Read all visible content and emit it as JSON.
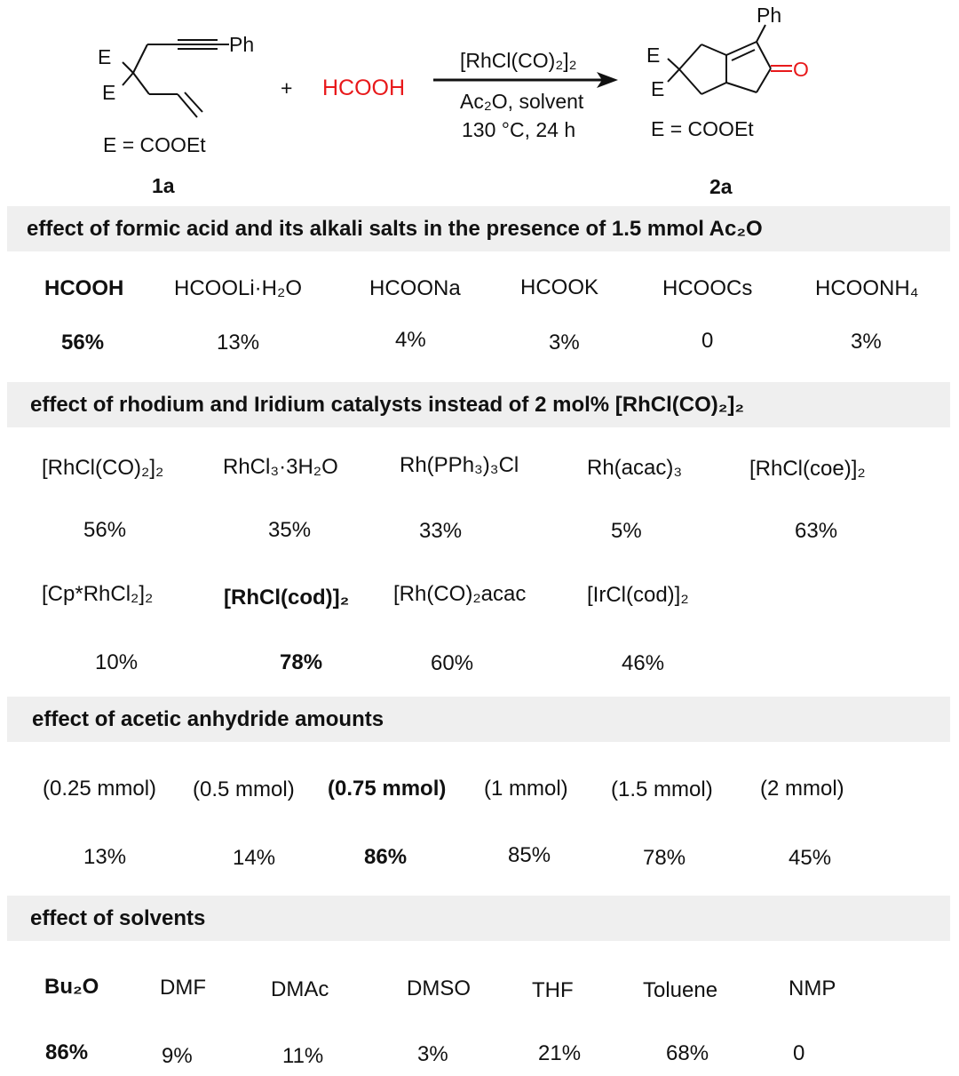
{
  "scheme": {
    "reactant": {
      "E_top": "E",
      "E_bottom": "E",
      "substituent": "Ph",
      "definition": "E = COOEt",
      "label": "1a"
    },
    "plus": "+",
    "reagent": "HCOOH",
    "reagent_color": "#e8191b",
    "conditions": {
      "catalyst": "[RhCl(CO)₂]₂",
      "line2": "Ac₂O, solvent",
      "line3": "130 °C, 24 h"
    },
    "product": {
      "E_top": "E",
      "E_bottom": "E",
      "substituent": "Ph",
      "carbonyl_O": "O",
      "definition": "E = COOEt",
      "label": "2a"
    }
  },
  "sections": [
    {
      "title": "effect of formic acid and its alkali salts in the presence of 1.5 mmol Ac₂O",
      "rows": [
        {
          "items": [
            {
              "name": "HCOOH",
              "value": "56%",
              "bold": true
            },
            {
              "name": "HCOOLi·H₂O",
              "value": "13%"
            },
            {
              "name": "HCOONa",
              "value": "4%"
            },
            {
              "name": "HCOOK",
              "value": "3%"
            },
            {
              "name": "HCOOCs",
              "value": "0"
            },
            {
              "name": "HCOONH₄",
              "value": "3%"
            }
          ]
        }
      ]
    },
    {
      "title": "effect of rhodium and Iridium catalysts instead of 2 mol% [RhCl(CO)₂]₂",
      "rows": [
        {
          "items": [
            {
              "name": "[RhCl(CO)₂]₂",
              "value": "56%"
            },
            {
              "name": "RhCl₃·3H₂O",
              "value": "35%"
            },
            {
              "name": "Rh(PPh₃)₃Cl",
              "value": "33%"
            },
            {
              "name": "Rh(acac)₃",
              "value": "5%"
            },
            {
              "name": "[RhCl(coe)]₂",
              "value": "63%"
            }
          ]
        },
        {
          "items": [
            {
              "name": "[Cp*RhCl₂]₂",
              "value": "10%"
            },
            {
              "name": "[RhCl(cod)]₂",
              "value": "78%",
              "bold": true
            },
            {
              "name": "[Rh(CO)₂acac",
              "value": "60%"
            },
            {
              "name": "[IrCl(cod)]₂",
              "value": "46%"
            }
          ]
        }
      ]
    },
    {
      "title": "effect of acetic anhydride amounts",
      "rows": [
        {
          "items": [
            {
              "name": "(0.25 mmol)",
              "value": "13%"
            },
            {
              "name": "(0.5 mmol)",
              "value": "14%"
            },
            {
              "name": "(0.75 mmol)",
              "value": "86%",
              "bold": true
            },
            {
              "name": "(1 mmol)",
              "value": "85%"
            },
            {
              "name": "(1.5 mmol)",
              "value": "78%"
            },
            {
              "name": "(2 mmol)",
              "value": "45%"
            }
          ]
        }
      ]
    },
    {
      "title": "effect of solvents",
      "rows": [
        {
          "items": [
            {
              "name": "Bu₂O",
              "value": "86%",
              "bold": true
            },
            {
              "name": "DMF",
              "value": "9%"
            },
            {
              "name": "DMAc",
              "value": "11%"
            },
            {
              "name": "DMSO",
              "value": "3%"
            },
            {
              "name": "THF",
              "value": "21%"
            },
            {
              "name": "Toluene",
              "value": "68%"
            },
            {
              "name": "NMP",
              "value": "0"
            }
          ]
        }
      ]
    }
  ]
}
